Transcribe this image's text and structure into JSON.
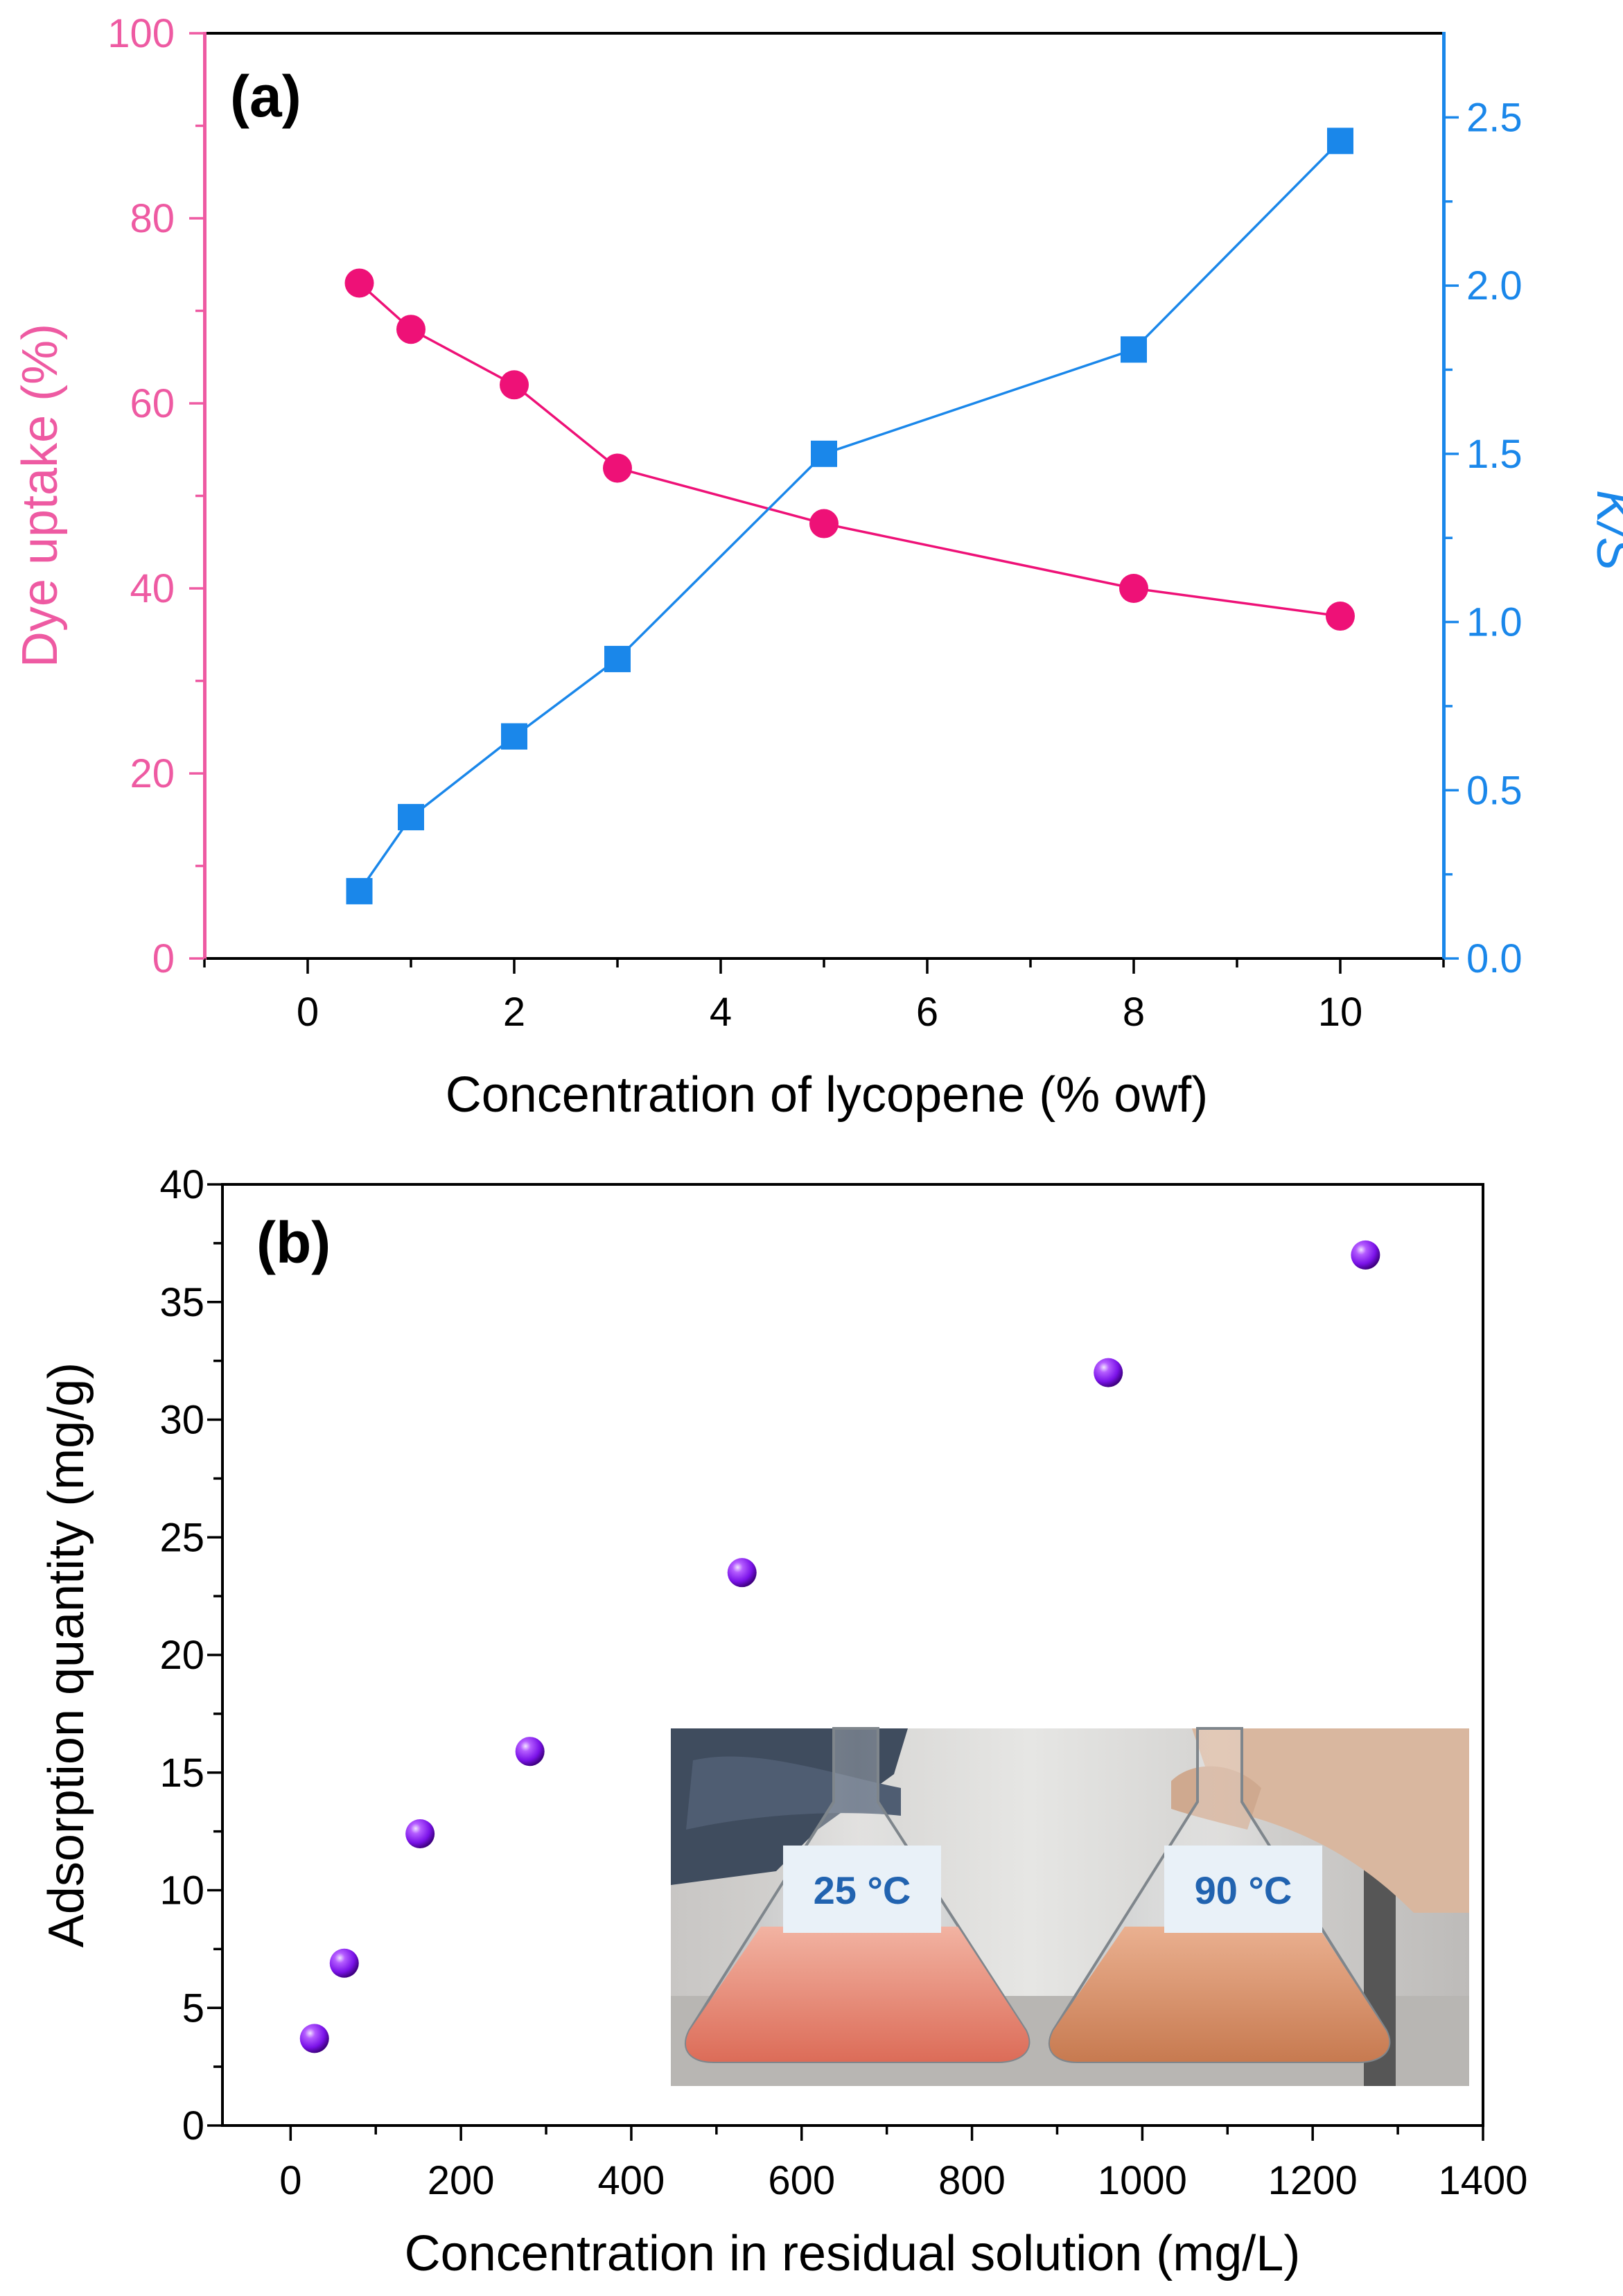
{
  "chart_data": [
    {
      "type": "line",
      "panel_label": "(a)",
      "xlabel": "Concentration of lycopene (% owf)",
      "ylabel": "Dye uptake (%)",
      "y2label": "K/S",
      "xlim": [
        -1,
        11
      ],
      "ylim": [
        0,
        100
      ],
      "y2lim": [
        0,
        2.75
      ],
      "xticks": [
        0,
        2,
        4,
        6,
        8,
        10
      ],
      "yticks": [
        0,
        20,
        40,
        60,
        80,
        100
      ],
      "y2ticks": [
        0.0,
        0.5,
        1.0,
        1.5,
        2.0,
        2.5
      ],
      "y2tick_labels": [
        "0.0",
        "0.5",
        "1.0",
        "1.5",
        "2.0",
        "2.5"
      ],
      "grid": false,
      "series": [
        {
          "name": "Dye uptake (%)",
          "axis": "left",
          "marker": "circle",
          "color": "#ee1177",
          "x": [
            0.5,
            1,
            2,
            3,
            5,
            8,
            10
          ],
          "y": [
            73,
            68,
            62,
            53,
            47,
            40,
            37
          ]
        },
        {
          "name": "K/S",
          "axis": "right",
          "marker": "square",
          "color": "#1a87ea",
          "x": [
            0.5,
            1,
            2,
            3,
            5,
            8,
            10
          ],
          "y": [
            0.2,
            0.42,
            0.66,
            0.89,
            1.5,
            1.81,
            2.43
          ]
        }
      ],
      "colors": {
        "left_axis": "#ee5aa2",
        "right_axis": "#1a87ea"
      }
    },
    {
      "type": "scatter",
      "panel_label": "(b)",
      "xlabel": "Concentration in residual solution (mg/L)",
      "ylabel": "Adsorption quantity (mg/g)",
      "xlim": [
        -80,
        1400
      ],
      "ylim": [
        0,
        40
      ],
      "xticks": [
        0,
        200,
        400,
        600,
        800,
        1000,
        1200,
        1400
      ],
      "yticks": [
        0,
        5,
        10,
        15,
        20,
        25,
        30,
        35,
        40
      ],
      "grid": false,
      "series": [
        {
          "name": "Adsorption",
          "marker": "sphere",
          "color": "#8a1cf0",
          "x": [
            28,
            63,
            152,
            281,
            530,
            960,
            1262
          ],
          "y": [
            3.7,
            6.9,
            12.4,
            15.9,
            23.5,
            32.0,
            37.0
          ]
        }
      ],
      "inset": {
        "flask_left_label": "25 °C",
        "flask_right_label": "90 °C"
      }
    }
  ]
}
